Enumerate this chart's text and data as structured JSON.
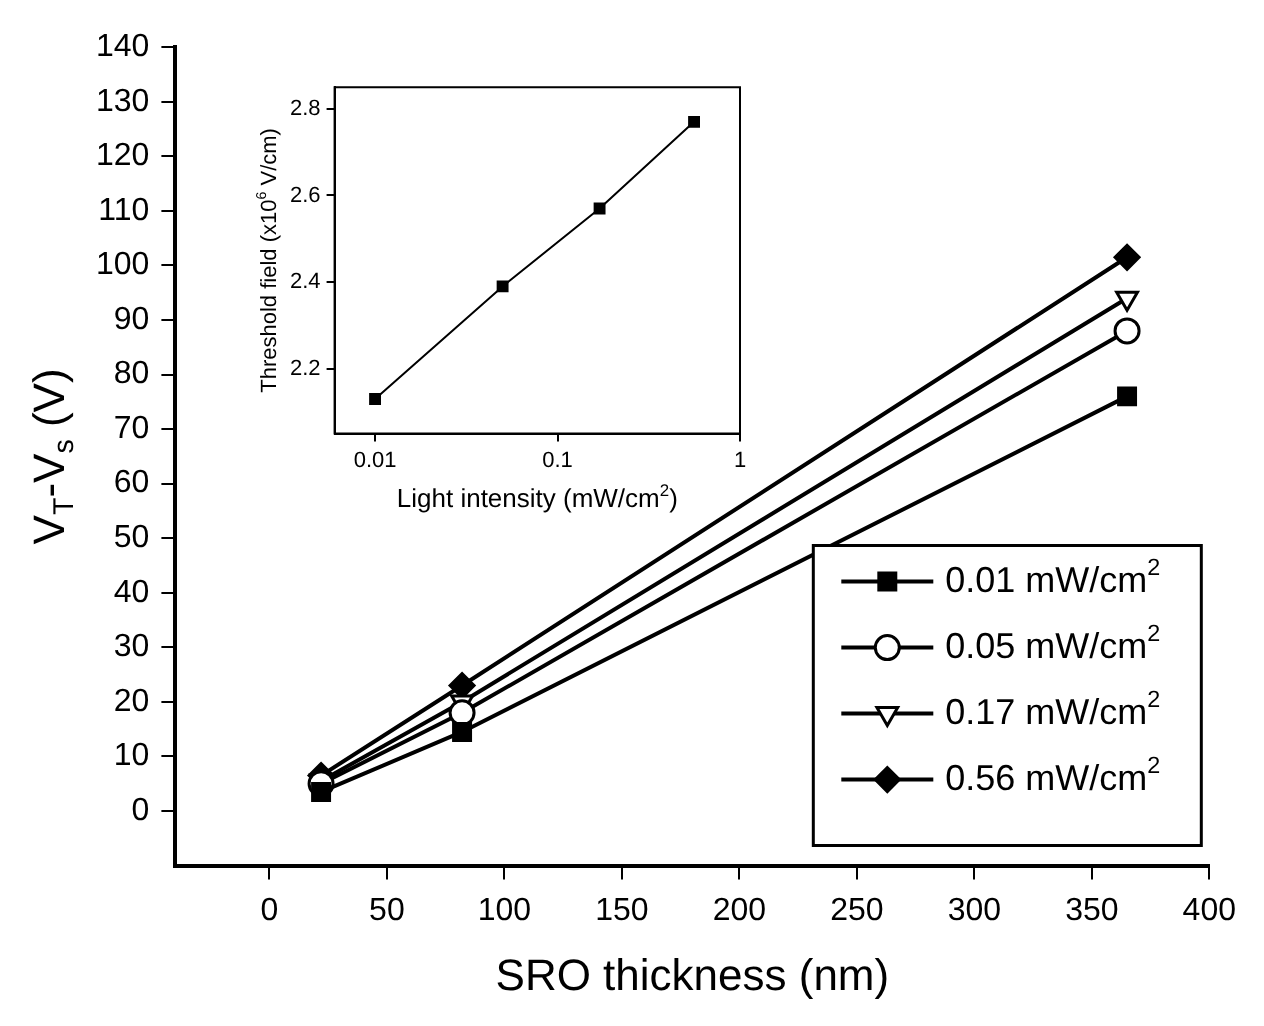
{
  "chart_data": [
    {
      "type": "line",
      "xlabel": "SRO thickness (nm)",
      "ylabel": "V$_{T}$-V$_{s}$ (V)",
      "x": [
        22,
        82,
        365
      ],
      "series": [
        {
          "name": "0.01 mW/cm$^{2}$",
          "color": "#000000",
          "marker": "square",
          "values": [
            3.5,
            14.5,
            76
          ]
        },
        {
          "name": "0.05 mW/cm$^{2}$",
          "color": "#000000",
          "marker": "circle",
          "values": [
            5,
            18,
            88
          ]
        },
        {
          "name": "0.17 mW/cm$^{2}$",
          "color": "#000000",
          "marker": "triangle",
          "values": [
            5.5,
            20,
            94
          ]
        },
        {
          "name": "0.56 mW/cm$^{2}$",
          "color": "#000000",
          "marker": "diamond",
          "values": [
            6.5,
            23,
            101.5
          ]
        }
      ],
      "xlim": [
        -40,
        400
      ],
      "xticks": [
        0,
        50,
        100,
        150,
        200,
        250,
        300,
        350,
        400
      ],
      "ylim": [
        -10,
        140
      ],
      "yticks": [
        0,
        10,
        20,
        30,
        40,
        50,
        60,
        70,
        80,
        90,
        100,
        110,
        120,
        130,
        140
      ],
      "grid": false,
      "legend": "bottom right"
    },
    {
      "type": "line",
      "xlabel": "Light intensity (mW/cm$^{2}$)",
      "ylabel": "Threshold field (x10$^{6}$ V/cm)",
      "x": [
        0.01,
        0.05,
        0.17,
        0.56
      ],
      "values": [
        2.13,
        2.39,
        2.57,
        2.77
      ],
      "color": "#000000",
      "marker": "square",
      "log": "x",
      "xlim": [
        0.006,
        1
      ],
      "xticks": [
        0.01,
        0.1,
        1
      ],
      "ylim": [
        2.05,
        2.85
      ],
      "yticks": [
        2.2,
        2.4,
        2.6,
        2.8
      ],
      "grid": false
    }
  ]
}
